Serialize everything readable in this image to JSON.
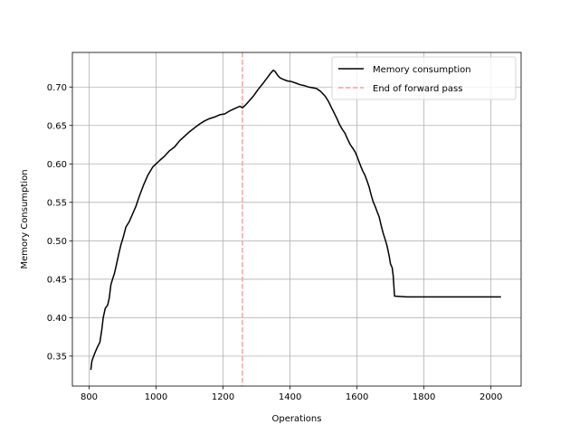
{
  "chart_data": {
    "type": "line",
    "title": "",
    "xlabel": "Operations",
    "ylabel": "Memory Consumption",
    "xlim": [
      750,
      2090
    ],
    "ylim": [
      0.311,
      0.745
    ],
    "xticks": [
      800,
      1000,
      1200,
      1400,
      1600,
      1800,
      2000
    ],
    "yticks": [
      0.35,
      0.4,
      0.45,
      0.5,
      0.55,
      0.6,
      0.65,
      0.7
    ],
    "grid": true,
    "legend_position": "top-right",
    "colors": {
      "line": "#000000",
      "vline": "#ff9e9e",
      "grid": "#b0b0b0"
    },
    "series": [
      {
        "name": "Memory consumption",
        "x": [
          805,
          808,
          812,
          818,
          825,
          832,
          838,
          842,
          848,
          855,
          860,
          865,
          870,
          876,
          882,
          888,
          895,
          902,
          910,
          920,
          930,
          940,
          950,
          962,
          975,
          990,
          1000,
          1012,
          1025,
          1040,
          1055,
          1070,
          1085,
          1100,
          1115,
          1130,
          1145,
          1160,
          1175,
          1190,
          1205,
          1220,
          1235,
          1250,
          1258,
          1268,
          1280,
          1292,
          1305,
          1318,
          1330,
          1342,
          1350,
          1356,
          1362,
          1370,
          1380,
          1392,
          1405,
          1418,
          1430,
          1442,
          1455,
          1468,
          1480,
          1492,
          1505,
          1515,
          1525,
          1532,
          1540,
          1548,
          1556,
          1564,
          1572,
          1580,
          1588,
          1595,
          1600,
          1606,
          1612,
          1618,
          1624,
          1630,
          1636,
          1642,
          1648,
          1654,
          1660,
          1666,
          1672,
          1678,
          1684,
          1690,
          1696,
          1700,
          1705,
          1708,
          1712,
          1750,
          1850,
          1950,
          2030
        ],
        "values": [
          0.332,
          0.343,
          0.348,
          0.355,
          0.362,
          0.368,
          0.385,
          0.4,
          0.412,
          0.416,
          0.425,
          0.443,
          0.45,
          0.458,
          0.47,
          0.482,
          0.495,
          0.505,
          0.518,
          0.525,
          0.535,
          0.545,
          0.558,
          0.572,
          0.585,
          0.596,
          0.6,
          0.605,
          0.61,
          0.617,
          0.622,
          0.63,
          0.636,
          0.642,
          0.647,
          0.652,
          0.656,
          0.659,
          0.661,
          0.664,
          0.665,
          0.669,
          0.672,
          0.675,
          0.673,
          0.677,
          0.683,
          0.689,
          0.697,
          0.704,
          0.711,
          0.718,
          0.722,
          0.72,
          0.716,
          0.712,
          0.71,
          0.708,
          0.707,
          0.705,
          0.703,
          0.702,
          0.7,
          0.699,
          0.698,
          0.694,
          0.688,
          0.681,
          0.672,
          0.666,
          0.659,
          0.651,
          0.645,
          0.64,
          0.632,
          0.625,
          0.62,
          0.615,
          0.61,
          0.603,
          0.596,
          0.59,
          0.585,
          0.578,
          0.57,
          0.56,
          0.551,
          0.545,
          0.538,
          0.531,
          0.52,
          0.51,
          0.502,
          0.493,
          0.48,
          0.47,
          0.465,
          0.455,
          0.428,
          0.427,
          0.427,
          0.427,
          0.427
        ]
      }
    ],
    "vline": {
      "name": "End of forward pass",
      "x": 1258
    }
  }
}
